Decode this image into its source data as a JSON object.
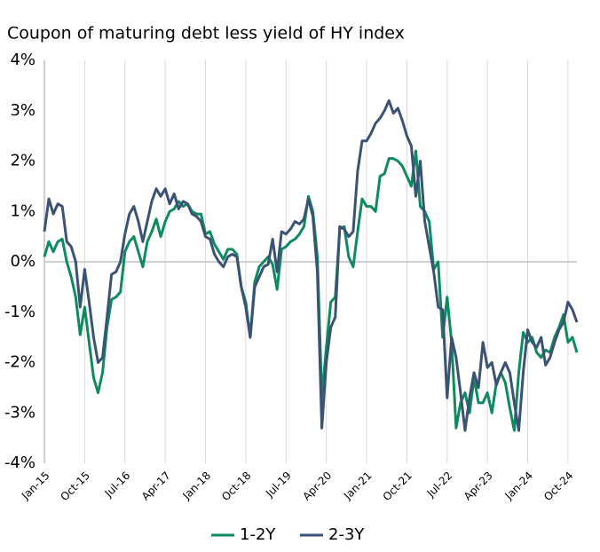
{
  "chart_data": {
    "type": "line",
    "title": "Coupon of maturing debt less yield of HY index",
    "categories": [
      "Jan-15",
      null,
      null,
      null,
      null,
      null,
      null,
      null,
      null,
      "Oct-15",
      null,
      null,
      null,
      null,
      null,
      null,
      null,
      null,
      "Jul-16",
      null,
      null,
      null,
      null,
      null,
      null,
      null,
      null,
      "Apr-17",
      null,
      null,
      null,
      null,
      null,
      null,
      null,
      null,
      "Jan-18",
      null,
      null,
      null,
      null,
      null,
      null,
      null,
      null,
      "Oct-18",
      null,
      null,
      null,
      null,
      null,
      null,
      null,
      null,
      "Jul-19",
      null,
      null,
      null,
      null,
      null,
      null,
      null,
      null,
      "Apr-20",
      null,
      null,
      null,
      null,
      null,
      null,
      null,
      null,
      "Jan-21",
      null,
      null,
      null,
      null,
      null,
      null,
      null,
      null,
      "Oct-21",
      null,
      null,
      null,
      null,
      null,
      null,
      null,
      null,
      "Jul-22",
      null,
      null,
      null,
      null,
      null,
      null,
      null,
      null,
      "Apr-23",
      null,
      null,
      null,
      null,
      null,
      null,
      null,
      null,
      "Jan-24",
      null,
      null,
      null,
      null,
      null,
      null,
      null,
      null,
      "Oct-24",
      null,
      null
    ],
    "series": [
      {
        "name": "1-2Y",
        "color": "#0e8a5f",
        "values": [
          0.1,
          0.4,
          0.2,
          0.4,
          0.45,
          0.0,
          -0.3,
          -0.7,
          -1.45,
          -0.9,
          -1.6,
          -2.3,
          -2.6,
          -2.2,
          -1.3,
          -0.75,
          -0.7,
          -0.6,
          0.2,
          0.4,
          0.5,
          0.2,
          -0.1,
          0.4,
          0.6,
          0.85,
          0.5,
          0.8,
          1.0,
          1.05,
          1.2,
          1.1,
          1.15,
          1.0,
          0.95,
          0.95,
          0.55,
          0.6,
          0.35,
          0.2,
          0.05,
          0.25,
          0.25,
          0.15,
          -0.5,
          -0.8,
          -1.5,
          -0.4,
          -0.1,
          0.0,
          0.1,
          -0.05,
          -0.55,
          0.25,
          0.3,
          0.4,
          0.45,
          0.55,
          0.7,
          1.3,
          1.0,
          0.1,
          -2.7,
          -1.7,
          -0.8,
          -0.7,
          0.65,
          0.7,
          0.1,
          -0.1,
          0.6,
          1.25,
          1.1,
          1.1,
          1.0,
          1.7,
          1.75,
          2.05,
          2.05,
          2.0,
          1.9,
          1.7,
          1.5,
          2.2,
          1.1,
          1.0,
          0.8,
          -0.15,
          0.0,
          -1.5,
          -0.7,
          -1.6,
          -3.3,
          -2.8,
          -2.6,
          -3.0,
          -2.3,
          -2.8,
          -2.8,
          -2.6,
          -3.0,
          -2.4,
          -2.2,
          -2.4,
          -2.9,
          -3.35,
          -2.2,
          -1.4,
          -1.6,
          -1.5,
          -1.8,
          -1.9,
          -1.75,
          -1.8,
          -1.5,
          -1.3,
          -1.05,
          -1.6,
          -1.5,
          -1.8
        ]
      },
      {
        "name": "2-3Y",
        "color": "#3a5275",
        "values": [
          0.6,
          1.25,
          0.95,
          1.15,
          1.1,
          0.4,
          0.3,
          0.0,
          -0.9,
          -0.15,
          -0.8,
          -1.5,
          -2.0,
          -1.9,
          -1.1,
          -0.25,
          -0.2,
          0.0,
          0.55,
          0.95,
          1.1,
          0.8,
          0.4,
          0.8,
          1.2,
          1.45,
          1.3,
          1.45,
          1.15,
          1.35,
          1.05,
          1.2,
          1.15,
          0.95,
          0.9,
          0.8,
          0.5,
          0.45,
          0.15,
          0.0,
          -0.1,
          0.1,
          0.15,
          0.1,
          -0.5,
          -0.9,
          -1.5,
          -0.5,
          -0.3,
          -0.1,
          -0.05,
          0.45,
          -0.2,
          0.6,
          0.55,
          0.65,
          0.8,
          0.75,
          0.85,
          1.25,
          0.9,
          -0.2,
          -3.3,
          -2.0,
          -1.3,
          -1.1,
          0.7,
          0.65,
          0.5,
          0.6,
          1.8,
          2.4,
          2.4,
          2.55,
          2.75,
          2.85,
          3.0,
          3.2,
          2.95,
          3.05,
          2.8,
          2.5,
          2.3,
          1.3,
          2.0,
          0.8,
          0.3,
          -0.2,
          -0.9,
          -0.95,
          -2.7,
          -1.5,
          -1.9,
          -2.6,
          -3.35,
          -2.7,
          -2.2,
          -2.5,
          -1.6,
          -2.1,
          -2.0,
          -2.45,
          -2.2,
          -2.0,
          -2.2,
          -2.8,
          -3.35,
          -2.2,
          -1.35,
          -1.6,
          -1.7,
          -1.5,
          -2.05,
          -1.9,
          -1.6,
          -1.35,
          -1.2,
          -0.8,
          -0.95,
          -1.2
        ]
      }
    ],
    "ylim": [
      -4,
      4
    ],
    "yticks": [
      {
        "value": -4,
        "label": "-4%"
      },
      {
        "value": -3,
        "label": "-3%"
      },
      {
        "value": -2,
        "label": "-2%"
      },
      {
        "value": -1,
        "label": "-1%"
      },
      {
        "value": 0,
        "label": "0%"
      },
      {
        "value": 1,
        "label": "1%"
      },
      {
        "value": 2,
        "label": "2%"
      },
      {
        "value": 3,
        "label": "3%"
      },
      {
        "value": 4,
        "label": "4%"
      }
    ],
    "grid": true,
    "legend": "bottom"
  }
}
